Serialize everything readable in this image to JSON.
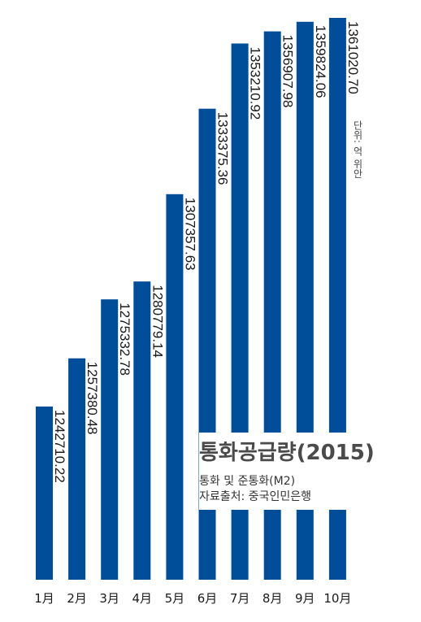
{
  "chart_data": {
    "type": "bar",
    "title": "통화공급량(2015)",
    "subtitle_lines": [
      "통화 및 준통화(M2)",
      "자료출처: 중국인민은행"
    ],
    "unit_label": "단위: 억 위안",
    "categories": [
      "1月",
      "2月",
      "3月",
      "4月",
      "5月",
      "6月",
      "7月",
      "8月",
      "9月",
      "10月"
    ],
    "values": [
      1242710.22,
      1257380.48,
      1275332.78,
      1280779.14,
      1307357.63,
      1333375.36,
      1353210.92,
      1356907.98,
      1359824.06,
      1361020.7
    ],
    "value_labels": [
      "1242710.22",
      "1257380.48",
      "1275332.78",
      "1280779.14",
      "1307357.63",
      "1333375.36",
      "1353210.92",
      "1356907.98",
      "1359824.06",
      "1361020.70"
    ],
    "ylim": [
      1190000,
      1362000
    ],
    "bar_color": "#004d99",
    "grid": false,
    "legend": "none"
  }
}
